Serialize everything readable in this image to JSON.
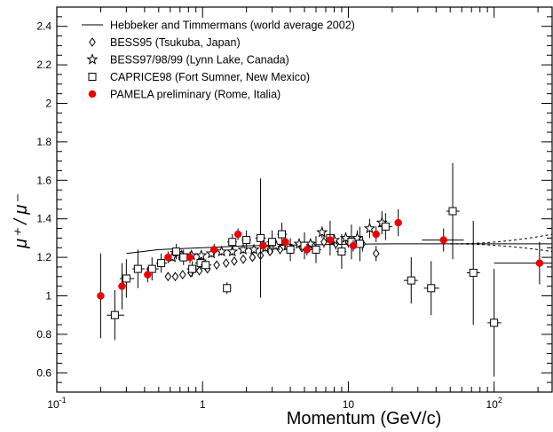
{
  "chart_data": {
    "type": "scatter",
    "title": "",
    "xlabel": "Momentum (GeV/c)",
    "ylabel": "μ⁺ / μ⁻",
    "x_scale": "log",
    "xlim": [
      0.1,
      250
    ],
    "ylim": [
      0.5,
      2.5
    ],
    "x_ticks": [
      {
        "value": 0.1,
        "base": "10",
        "exp": "-1"
      },
      {
        "value": 1,
        "base": "1",
        "exp": ""
      },
      {
        "value": 10,
        "base": "10",
        "exp": ""
      },
      {
        "value": 100,
        "base": "10",
        "exp": "2"
      }
    ],
    "y_ticks": [
      "0.6",
      "0.8",
      "1",
      "1.2",
      "1.4",
      "1.6",
      "1.8",
      "2",
      "2.2",
      "2.4"
    ],
    "grid": false,
    "legend_position": "top-left",
    "legend": [
      {
        "marker": "line",
        "label": "Hebbeker and Timmermans (world average 2002)"
      },
      {
        "marker": "diamond",
        "label": "BESS95 (Tsukuba, Japan)"
      },
      {
        "marker": "star",
        "label": "BESS97/98/99 (Lynn Lake, Canada)"
      },
      {
        "marker": "square",
        "label": "CAPRICE98 (Fort Sumner, New Mexico)"
      },
      {
        "marker": "circle",
        "label": "PAMELA preliminary (Rome, Italia)"
      }
    ],
    "colors": {
      "pamela": "#ee0000",
      "axes": "#000000"
    },
    "world_average": {
      "x": [
        0.3,
        0.5,
        1,
        2,
        5,
        10,
        20,
        50,
        100,
        200,
        250
      ],
      "y": [
        1.22,
        1.24,
        1.25,
        1.26,
        1.265,
        1.268,
        1.27,
        1.27,
        1.27,
        1.27,
        1.27
      ],
      "band_from": 50,
      "band_upper_end": 1.32,
      "band_lower_end": 1.23
    },
    "series": [
      {
        "name": "BESS95 (Tsukuba, Japan)",
        "marker": "diamond",
        "points": [
          {
            "x": 0.58,
            "y": 1.1,
            "ey": 0.02
          },
          {
            "x": 0.65,
            "y": 1.1,
            "ey": 0.02
          },
          {
            "x": 0.73,
            "y": 1.11,
            "ey": 0.02
          },
          {
            "x": 0.83,
            "y": 1.12,
            "ey": 0.02
          },
          {
            "x": 0.95,
            "y": 1.13,
            "ey": 0.02
          },
          {
            "x": 1.08,
            "y": 1.14,
            "ey": 0.02
          },
          {
            "x": 1.25,
            "y": 1.16,
            "ey": 0.02
          },
          {
            "x": 1.45,
            "y": 1.17,
            "ey": 0.02
          },
          {
            "x": 1.65,
            "y": 1.18,
            "ey": 0.02
          },
          {
            "x": 1.9,
            "y": 1.19,
            "ey": 0.02
          },
          {
            "x": 2.2,
            "y": 1.2,
            "ey": 0.02
          },
          {
            "x": 2.5,
            "y": 1.21,
            "ey": 0.02
          },
          {
            "x": 2.9,
            "y": 1.23,
            "ey": 0.02
          },
          {
            "x": 3.4,
            "y": 1.24,
            "ey": 0.02
          },
          {
            "x": 4.0,
            "y": 1.25,
            "ey": 0.02
          },
          {
            "x": 4.8,
            "y": 1.25,
            "ey": 0.02
          },
          {
            "x": 5.7,
            "y": 1.26,
            "ey": 0.02
          },
          {
            "x": 6.8,
            "y": 1.28,
            "ey": 0.03
          },
          {
            "x": 8.2,
            "y": 1.27,
            "ey": 0.03
          },
          {
            "x": 10.0,
            "y": 1.28,
            "ey": 0.03
          },
          {
            "x": 12.5,
            "y": 1.27,
            "ey": 0.04
          },
          {
            "x": 15.5,
            "y": 1.22,
            "ey": 0.04
          }
        ]
      },
      {
        "name": "BESS97/98/99 (Lynn Lake, Canada)",
        "marker": "star",
        "points": [
          {
            "x": 0.62,
            "y": 1.2,
            "ey": 0.02
          },
          {
            "x": 0.72,
            "y": 1.21,
            "ey": 0.02
          },
          {
            "x": 0.84,
            "y": 1.21,
            "ey": 0.02
          },
          {
            "x": 0.98,
            "y": 1.21,
            "ey": 0.02
          },
          {
            "x": 1.15,
            "y": 1.22,
            "ey": 0.02
          },
          {
            "x": 1.35,
            "y": 1.23,
            "ey": 0.02
          },
          {
            "x": 1.6,
            "y": 1.23,
            "ey": 0.02
          },
          {
            "x": 1.9,
            "y": 1.24,
            "ey": 0.02
          },
          {
            "x": 2.25,
            "y": 1.24,
            "ey": 0.02
          },
          {
            "x": 2.7,
            "y": 1.25,
            "ey": 0.02
          },
          {
            "x": 3.2,
            "y": 1.26,
            "ey": 0.02
          },
          {
            "x": 3.8,
            "y": 1.26,
            "ey": 0.02
          },
          {
            "x": 4.6,
            "y": 1.27,
            "ey": 0.02
          },
          {
            "x": 5.5,
            "y": 1.27,
            "ey": 0.02
          },
          {
            "x": 6.6,
            "y": 1.33,
            "ey": 0.03
          },
          {
            "x": 8.0,
            "y": 1.29,
            "ey": 0.03
          },
          {
            "x": 9.6,
            "y": 1.3,
            "ey": 0.03
          },
          {
            "x": 11.5,
            "y": 1.3,
            "ey": 0.04
          },
          {
            "x": 14.0,
            "y": 1.35,
            "ey": 0.05
          },
          {
            "x": 17.0,
            "y": 1.38,
            "ey": 0.06
          }
        ]
      },
      {
        "name": "CAPRICE98 (Fort Sumner, New Mexico)",
        "marker": "square",
        "points": [
          {
            "x": 0.25,
            "y": 0.9,
            "ey": 0.13,
            "xlo": 0.22,
            "xhi": 0.29
          },
          {
            "x": 0.3,
            "y": 1.09,
            "ey": 0.1,
            "xlo": 0.27,
            "xhi": 0.34
          },
          {
            "x": 0.36,
            "y": 1.14,
            "ey": 0.1,
            "xlo": 0.33,
            "xhi": 0.4
          },
          {
            "x": 0.45,
            "y": 1.14,
            "ey": 0.06,
            "xlo": 0.41,
            "xhi": 0.5
          },
          {
            "x": 0.52,
            "y": 1.17,
            "ey": 0.05,
            "xlo": 0.48,
            "xhi": 0.57
          },
          {
            "x": 0.66,
            "y": 1.23,
            "ey": 0.04,
            "xlo": 0.6,
            "xhi": 0.72
          },
          {
            "x": 0.74,
            "y": 1.2,
            "ey": 0.04,
            "xlo": 0.68,
            "xhi": 0.81
          },
          {
            "x": 0.85,
            "y": 1.14,
            "ey": 0.04,
            "xlo": 0.78,
            "xhi": 0.93
          },
          {
            "x": 0.97,
            "y": 1.17,
            "ey": 0.03,
            "xlo": 0.89,
            "xhi": 1.06
          },
          {
            "x": 1.05,
            "y": 1.16,
            "ey": 0.03,
            "xlo": 0.97,
            "xhi": 1.15
          },
          {
            "x": 1.47,
            "y": 1.04,
            "ey": 0.03,
            "xlo": 1.38,
            "xhi": 1.57
          },
          {
            "x": 1.6,
            "y": 1.28,
            "ey": 0.04,
            "xlo": 1.48,
            "xhi": 1.72
          },
          {
            "x": 2.0,
            "y": 1.29,
            "ey": 0.05,
            "xlo": 1.85,
            "xhi": 2.15
          },
          {
            "x": 2.5,
            "y": 1.3,
            "ey": 0.31,
            "xlo": 2.3,
            "xhi": 2.72
          },
          {
            "x": 3.0,
            "y": 1.28,
            "ey": 0.06,
            "xlo": 2.75,
            "xhi": 3.25
          },
          {
            "x": 3.5,
            "y": 1.32,
            "ey": 0.06,
            "xlo": 3.25,
            "xhi": 3.8
          },
          {
            "x": 4.0,
            "y": 1.24,
            "ey": 0.06,
            "xlo": 3.7,
            "xhi": 4.3
          },
          {
            "x": 5.0,
            "y": 1.26,
            "ey": 0.07,
            "xlo": 4.6,
            "xhi": 5.5
          },
          {
            "x": 6.0,
            "y": 1.24,
            "ey": 0.07,
            "xlo": 5.5,
            "xhi": 6.5
          },
          {
            "x": 7.5,
            "y": 1.3,
            "ey": 0.09,
            "xlo": 7.0,
            "xhi": 8.0
          },
          {
            "x": 9.0,
            "y": 1.23,
            "ey": 0.09,
            "xlo": 8.3,
            "xhi": 9.7
          },
          {
            "x": 10.5,
            "y": 1.28,
            "ey": 0.09,
            "xlo": 9.8,
            "xhi": 11.2
          },
          {
            "x": 12.0,
            "y": 1.27,
            "ey": 0.09,
            "xlo": 11.2,
            "xhi": 12.8
          },
          {
            "x": 18.0,
            "y": 1.36,
            "ey": 0.07,
            "xlo": 16.0,
            "xhi": 20.0
          },
          {
            "x": 27.0,
            "y": 1.08,
            "ey": 0.12,
            "xlo": 24.0,
            "xhi": 30.0
          },
          {
            "x": 37.0,
            "y": 1.04,
            "ey": 0.14,
            "xlo": 33.0,
            "xhi": 42.0
          },
          {
            "x": 52.0,
            "y": 1.44,
            "ey": 0.25,
            "xlo": 47.0,
            "xhi": 58.0
          },
          {
            "x": 72.0,
            "y": 1.12,
            "ey": 0.27,
            "xlo": 65.0,
            "xhi": 80.0
          },
          {
            "x": 100.0,
            "y": 0.86,
            "ey": 0.28,
            "xlo": 90.0,
            "xhi": 112.0
          }
        ]
      },
      {
        "name": "PAMELA preliminary (Rome, Italia)",
        "marker": "circle",
        "points": [
          {
            "x": 0.2,
            "y": 1.0,
            "ey": 0.22
          },
          {
            "x": 0.28,
            "y": 1.05,
            "ey": 0.12
          },
          {
            "x": 0.42,
            "y": 1.11,
            "ey": 0.04
          },
          {
            "x": 0.58,
            "y": 1.2,
            "ey": 0.03
          },
          {
            "x": 0.82,
            "y": 1.2,
            "ey": 0.03
          },
          {
            "x": 1.2,
            "y": 1.24,
            "ey": 0.03
          },
          {
            "x": 1.75,
            "y": 1.32,
            "ey": 0.03
          },
          {
            "x": 2.6,
            "y": 1.26,
            "ey": 0.03
          },
          {
            "x": 3.7,
            "y": 1.28,
            "ey": 0.03
          },
          {
            "x": 5.2,
            "y": 1.24,
            "ey": 0.03
          },
          {
            "x": 7.5,
            "y": 1.29,
            "ey": 0.03
          },
          {
            "x": 10.8,
            "y": 1.26,
            "ey": 0.03
          },
          {
            "x": 15.5,
            "y": 1.32,
            "ey": 0.04
          },
          {
            "x": 22.0,
            "y": 1.38,
            "ey": 0.07
          },
          {
            "x": 45.0,
            "y": 1.29,
            "ey": 0.06,
            "xlo": 32.0,
            "xhi": 62.0
          },
          {
            "x": 205.0,
            "y": 1.17,
            "ey": 0.11,
            "xlo": 100.0,
            "xhi": 250.0
          }
        ]
      }
    ]
  }
}
